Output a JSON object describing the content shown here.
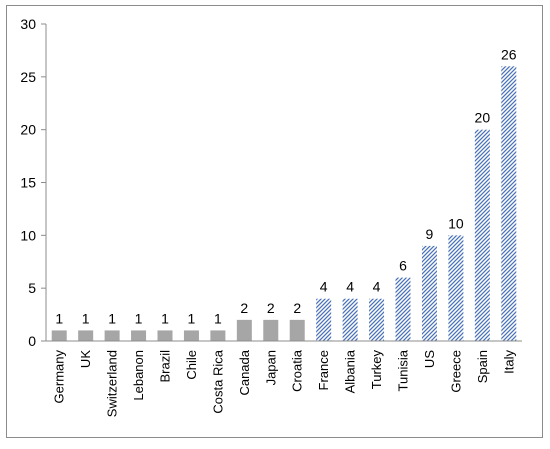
{
  "chart_data": {
    "type": "bar",
    "title": "",
    "xlabel": "",
    "ylabel": "",
    "ylim": [
      0,
      30
    ],
    "yticks": [
      0,
      5,
      10,
      15,
      20,
      25,
      30
    ],
    "grid": false,
    "legend": "none",
    "categories": [
      "Germany",
      "UK",
      "Switzerland",
      "Lebanon",
      "Brazil",
      "Chile",
      "Costa Rica",
      "Canada",
      "Japan",
      "Croatia",
      "France",
      "Albania",
      "Turkey",
      "Tunisia",
      "US",
      "Greece",
      "Spain",
      "Italy"
    ],
    "values": [
      1,
      1,
      1,
      1,
      1,
      1,
      1,
      2,
      2,
      2,
      4,
      4,
      4,
      6,
      9,
      10,
      20,
      26
    ],
    "styles": [
      "solid",
      "solid",
      "solid",
      "solid",
      "solid",
      "solid",
      "solid",
      "solid",
      "solid",
      "solid",
      "hatched",
      "hatched",
      "hatched",
      "hatched",
      "hatched",
      "hatched",
      "hatched",
      "hatched"
    ],
    "colors": {
      "solid": "#a6a6a6",
      "hatch": "#4a72b8",
      "axis": "#8c8c8c"
    }
  }
}
